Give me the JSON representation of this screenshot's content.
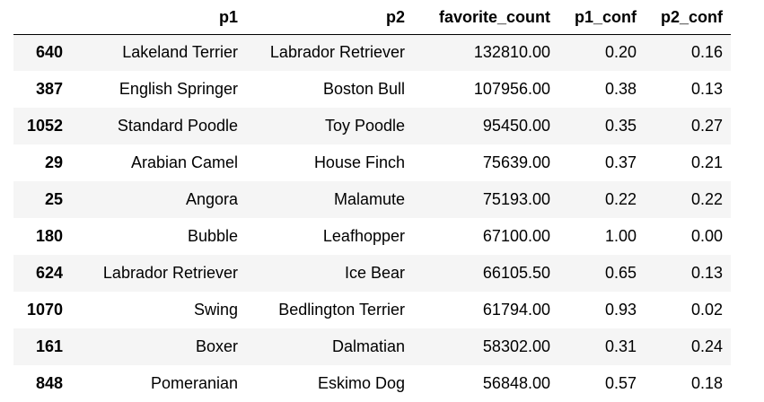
{
  "table": {
    "columns": [
      "",
      "p1",
      "p2",
      "favorite_count",
      "p1_conf",
      "p2_conf"
    ],
    "rows": [
      {
        "index": "640",
        "p1": "Lakeland Terrier",
        "p2": "Labrador Retriever",
        "favorite_count": "132810.00",
        "p1_conf": "0.20",
        "p2_conf": "0.16"
      },
      {
        "index": "387",
        "p1": "English Springer",
        "p2": "Boston Bull",
        "favorite_count": "107956.00",
        "p1_conf": "0.38",
        "p2_conf": "0.13"
      },
      {
        "index": "1052",
        "p1": "Standard Poodle",
        "p2": "Toy Poodle",
        "favorite_count": "95450.00",
        "p1_conf": "0.35",
        "p2_conf": "0.27"
      },
      {
        "index": "29",
        "p1": "Arabian Camel",
        "p2": "House Finch",
        "favorite_count": "75639.00",
        "p1_conf": "0.37",
        "p2_conf": "0.21"
      },
      {
        "index": "25",
        "p1": "Angora",
        "p2": "Malamute",
        "favorite_count": "75193.00",
        "p1_conf": "0.22",
        "p2_conf": "0.22"
      },
      {
        "index": "180",
        "p1": "Bubble",
        "p2": "Leafhopper",
        "favorite_count": "67100.00",
        "p1_conf": "1.00",
        "p2_conf": "0.00"
      },
      {
        "index": "624",
        "p1": "Labrador Retriever",
        "p2": "Ice Bear",
        "favorite_count": "66105.50",
        "p1_conf": "0.65",
        "p2_conf": "0.13"
      },
      {
        "index": "1070",
        "p1": "Swing",
        "p2": "Bedlington Terrier",
        "favorite_count": "61794.00",
        "p1_conf": "0.93",
        "p2_conf": "0.02"
      },
      {
        "index": "161",
        "p1": "Boxer",
        "p2": "Dalmatian",
        "favorite_count": "58302.00",
        "p1_conf": "0.31",
        "p2_conf": "0.24"
      },
      {
        "index": "848",
        "p1": "Pomeranian",
        "p2": "Eskimo Dog",
        "favorite_count": "56848.00",
        "p1_conf": "0.57",
        "p2_conf": "0.18"
      }
    ]
  },
  "colors": {
    "stripe": "#f5f5f5",
    "background": "#ffffff",
    "header_rule": "#000000"
  }
}
